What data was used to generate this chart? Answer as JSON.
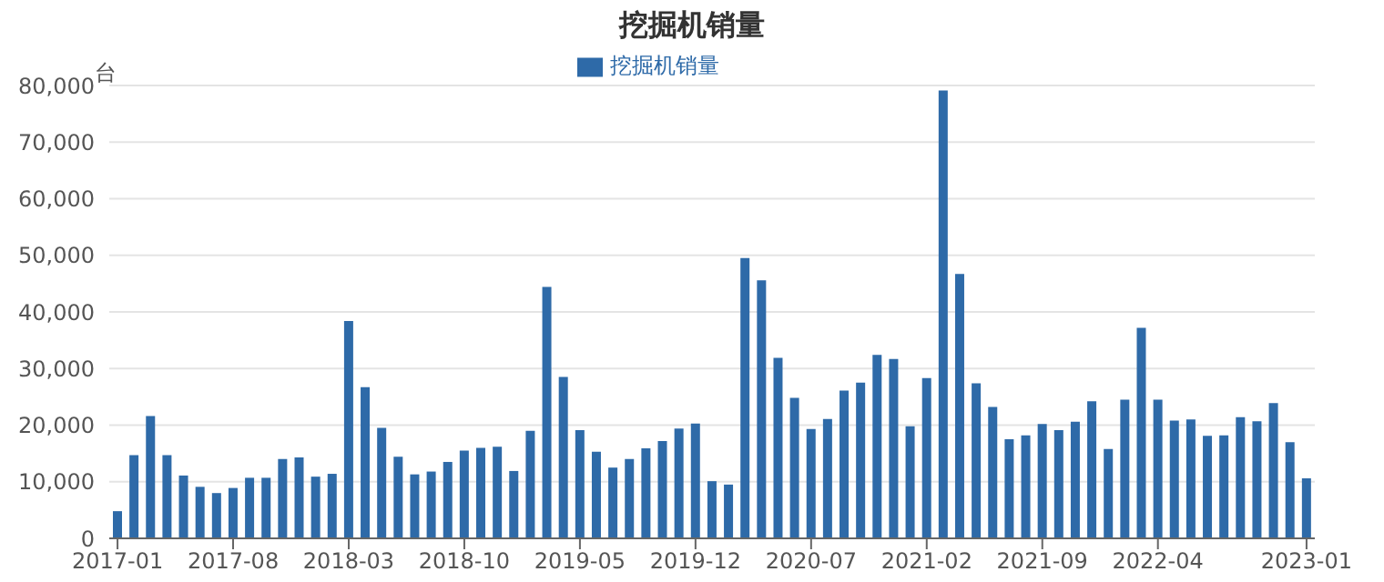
{
  "chart_data": {
    "type": "bar",
    "title": "挖掘机销量",
    "ylabel": "台",
    "categories": [
      "2017-01",
      null,
      null,
      null,
      null,
      null,
      null,
      "2017-08",
      null,
      null,
      null,
      null,
      null,
      null,
      "2018-03",
      null,
      null,
      null,
      null,
      null,
      null,
      "2018-10",
      null,
      null,
      null,
      null,
      null,
      null,
      "2019-05",
      null,
      null,
      null,
      null,
      null,
      null,
      "2019-12",
      null,
      null,
      null,
      null,
      null,
      null,
      "2020-07",
      null,
      null,
      null,
      null,
      null,
      null,
      "2021-02",
      null,
      null,
      null,
      null,
      null,
      null,
      "2021-09",
      null,
      null,
      null,
      null,
      null,
      null,
      "2022-04",
      null,
      null,
      null,
      null,
      null,
      null,
      null,
      null,
      "2023-01"
    ],
    "series": [
      {
        "name": "挖掘机销量",
        "color": "#2e6aa8",
        "values": [
          4800,
          14700,
          21600,
          14700,
          11100,
          9100,
          8000,
          8900,
          10700,
          10700,
          14000,
          14300,
          10900,
          11400,
          38400,
          26700,
          19500,
          14400,
          11300,
          11800,
          13500,
          15500,
          16000,
          16200,
          11900,
          19000,
          44400,
          28500,
          19100,
          15300,
          12500,
          14000,
          15900,
          17200,
          19400,
          20300,
          10100,
          9500,
          49500,
          45600,
          31900,
          24800,
          19300,
          21100,
          26100,
          27500,
          32400,
          31700,
          19800,
          28300,
          79100,
          46700,
          27400,
          23200,
          17500,
          18200,
          20200,
          19100,
          20600,
          24200,
          15800,
          24500,
          37200,
          24500,
          20800,
          21000,
          18100,
          18200,
          21400,
          20700,
          23900,
          17000,
          10600
        ]
      }
    ],
    "ylim": [
      0,
      80000
    ],
    "yticks": [
      0,
      {
        "value": 10000,
        "label": "10,000"
      },
      {
        "value": 20000,
        "label": "20,000"
      },
      {
        "value": 30000,
        "label": "30,000"
      },
      {
        "value": 40000,
        "label": "40,000"
      },
      {
        "value": 50000,
        "label": "50,000"
      },
      {
        "value": 60000,
        "label": "60,000"
      },
      {
        "value": 70000,
        "label": "70,000"
      },
      {
        "value": 80000,
        "label": "80,000"
      }
    ],
    "grid": "y",
    "legend": "top"
  }
}
